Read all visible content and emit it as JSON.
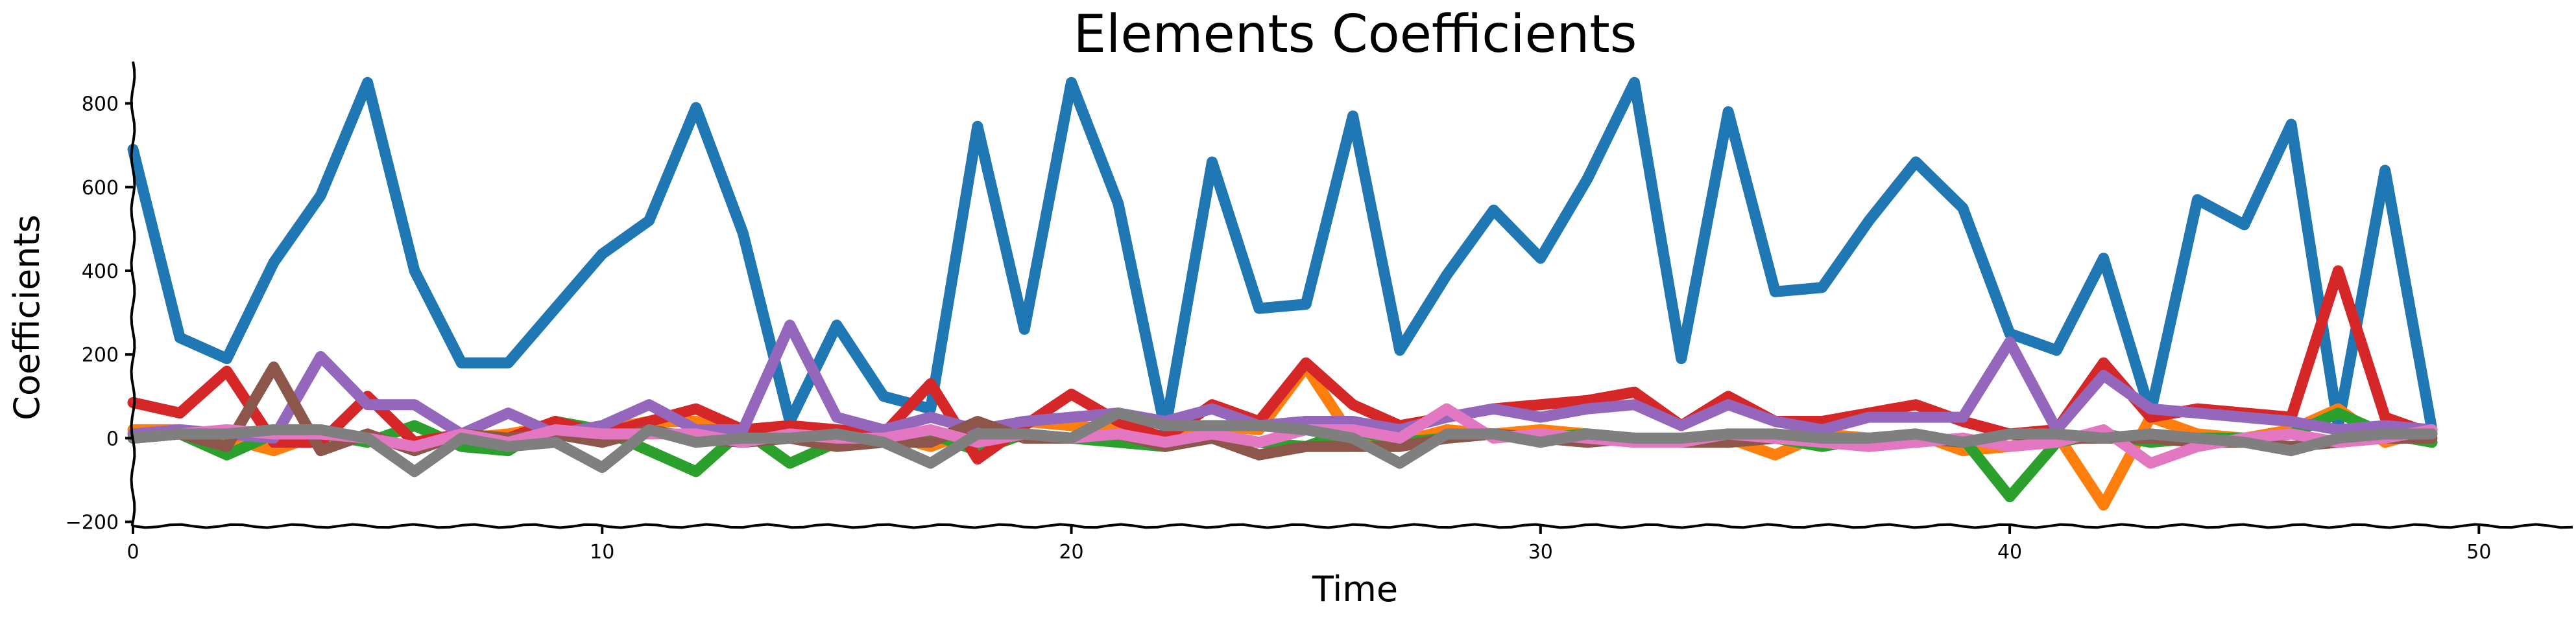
{
  "chart_data": {
    "type": "line",
    "title": "Elements Coefficients",
    "xlabel": "Time",
    "ylabel": "Coefficients",
    "xlim": [
      0,
      52
    ],
    "ylim": [
      -210,
      900
    ],
    "xticks": [
      0,
      10,
      20,
      30,
      40,
      50
    ],
    "yticks": [
      -200,
      0,
      200,
      400,
      600,
      800
    ],
    "grid": false,
    "legend": "none",
    "x": [
      0,
      1,
      2,
      3,
      4,
      5,
      6,
      7,
      8,
      9,
      10,
      11,
      12,
      13,
      14,
      15,
      16,
      17,
      18,
      19,
      20,
      21,
      22,
      23,
      24,
      25,
      26,
      27,
      28,
      29,
      30,
      31,
      32,
      33,
      34,
      35,
      36,
      37,
      38,
      39,
      40,
      41,
      42,
      43,
      44,
      45,
      46,
      47,
      48,
      49
    ],
    "series": [
      {
        "color": "#1f77b4",
        "values": [
          690,
          240,
          190,
          420,
          580,
          850,
          400,
          180,
          180,
          310,
          440,
          520,
          790,
          490,
          40,
          270,
          100,
          70,
          745,
          260,
          850,
          560,
          20,
          660,
          310,
          320,
          770,
          210,
          390,
          545,
          430,
          620,
          850,
          190,
          780,
          350,
          360,
          520,
          660,
          550,
          250,
          210,
          430,
          60,
          570,
          510,
          750,
          30,
          640,
          20
        ]
      },
      {
        "color": "#ff7f0e",
        "values": [
          20,
          20,
          0,
          -30,
          10,
          0,
          -20,
          0,
          10,
          30,
          20,
          40,
          40,
          10,
          20,
          10,
          10,
          -20,
          20,
          40,
          30,
          20,
          -10,
          30,
          20,
          170,
          0,
          -10,
          20,
          10,
          20,
          10,
          0,
          0,
          0,
          -40,
          10,
          0,
          10,
          -30,
          -20,
          10,
          -160,
          50,
          10,
          0,
          20,
          70,
          -10,
          20
        ]
      },
      {
        "color": "#2ca02c",
        "values": [
          0,
          10,
          -40,
          10,
          10,
          -10,
          30,
          -20,
          -30,
          40,
          20,
          -30,
          -80,
          20,
          -60,
          -10,
          10,
          10,
          -30,
          10,
          0,
          -10,
          -20,
          10,
          -10,
          -20,
          20,
          -10,
          0,
          10,
          0,
          10,
          0,
          0,
          -10,
          0,
          -20,
          0,
          -10,
          0,
          -140,
          -10,
          10,
          -10,
          0,
          0,
          10,
          60,
          10,
          -10
        ]
      },
      {
        "color": "#d62728",
        "values": [
          85,
          60,
          160,
          -10,
          -10,
          100,
          -10,
          10,
          0,
          40,
          10,
          40,
          70,
          20,
          30,
          20,
          10,
          130,
          -50,
          30,
          105,
          40,
          0,
          80,
          40,
          180,
          80,
          30,
          50,
          70,
          80,
          90,
          110,
          30,
          100,
          40,
          40,
          60,
          80,
          40,
          10,
          20,
          180,
          50,
          70,
          60,
          50,
          400,
          50,
          10
        ]
      },
      {
        "color": "#9467bd",
        "values": [
          10,
          20,
          10,
          0,
          195,
          80,
          80,
          10,
          60,
          10,
          30,
          80,
          20,
          20,
          270,
          50,
          20,
          50,
          20,
          40,
          50,
          60,
          40,
          70,
          30,
          40,
          40,
          20,
          50,
          70,
          50,
          70,
          80,
          30,
          80,
          40,
          20,
          50,
          50,
          50,
          230,
          20,
          150,
          70,
          60,
          50,
          40,
          20,
          30,
          20
        ]
      },
      {
        "color": "#8c564b",
        "values": [
          0,
          10,
          -20,
          170,
          -30,
          10,
          -30,
          10,
          0,
          10,
          -10,
          20,
          0,
          -10,
          0,
          -20,
          -10,
          -10,
          40,
          0,
          0,
          10,
          -20,
          0,
          -40,
          -20,
          -20,
          -20,
          0,
          10,
          0,
          -10,
          0,
          -10,
          -10,
          0,
          0,
          0,
          0,
          -10,
          10,
          0,
          0,
          0,
          -10,
          -10,
          -20,
          -10,
          0,
          0
        ]
      },
      {
        "color": "#e377c2",
        "values": [
          0,
          10,
          20,
          10,
          10,
          0,
          -20,
          10,
          -10,
          20,
          10,
          10,
          10,
          -10,
          10,
          0,
          0,
          20,
          -10,
          10,
          0,
          10,
          -10,
          10,
          -10,
          20,
          20,
          0,
          70,
          0,
          10,
          0,
          -10,
          -10,
          10,
          0,
          -10,
          -20,
          -10,
          0,
          -20,
          -10,
          20,
          -60,
          -20,
          0,
          10,
          -10,
          0,
          20
        ]
      },
      {
        "color": "#7f7f7f",
        "values": [
          0,
          10,
          10,
          20,
          20,
          0,
          -80,
          0,
          -20,
          -10,
          -70,
          20,
          -10,
          0,
          0,
          10,
          -10,
          -60,
          10,
          10,
          0,
          60,
          30,
          30,
          30,
          20,
          0,
          -60,
          10,
          10,
          -10,
          10,
          0,
          0,
          10,
          10,
          0,
          0,
          10,
          -10,
          10,
          10,
          0,
          10,
          0,
          -10,
          -30,
          0,
          10,
          10
        ]
      }
    ]
  }
}
